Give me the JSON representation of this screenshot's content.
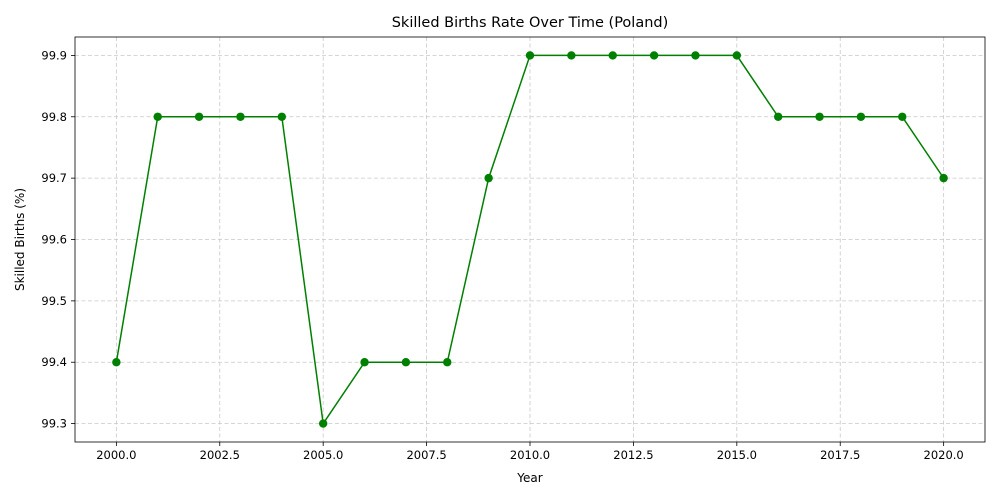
{
  "chart_data": {
    "type": "line",
    "title": "Skilled Births Rate Over Time (Poland)",
    "xlabel": "Year",
    "ylabel": "Skilled Births (%)",
    "x": [
      2000,
      2001,
      2002,
      2003,
      2004,
      2005,
      2006,
      2007,
      2008,
      2009,
      2010,
      2011,
      2012,
      2013,
      2014,
      2015,
      2016,
      2017,
      2018,
      2019,
      2020
    ],
    "series": [
      {
        "values": [
          99.4,
          99.8,
          99.8,
          99.8,
          99.8,
          99.3,
          99.4,
          99.4,
          99.4,
          99.7,
          99.9,
          99.9,
          99.9,
          99.9,
          99.9,
          99.9,
          99.8,
          99.8,
          99.8,
          99.8,
          99.7
        ],
        "color": "#008000",
        "marker": "circle"
      }
    ],
    "xlim": [
      1999.0,
      2021.0
    ],
    "ylim": [
      99.27,
      99.93
    ],
    "xticks": [
      2000.0,
      2002.5,
      2005.0,
      2007.5,
      2010.0,
      2012.5,
      2015.0,
      2017.5,
      2020.0
    ],
    "xtick_labels": [
      "2000.0",
      "2002.5",
      "2005.0",
      "2007.5",
      "2010.0",
      "2012.5",
      "2015.0",
      "2017.5",
      "2020.0"
    ],
    "yticks": [
      99.3,
      99.4,
      99.5,
      99.6,
      99.7,
      99.8,
      99.9
    ],
    "ytick_labels": [
      "99.3",
      "99.4",
      "99.5",
      "99.6",
      "99.7",
      "99.8",
      "99.9"
    ],
    "grid": true,
    "grid_style": "dashed",
    "legend": "none"
  }
}
